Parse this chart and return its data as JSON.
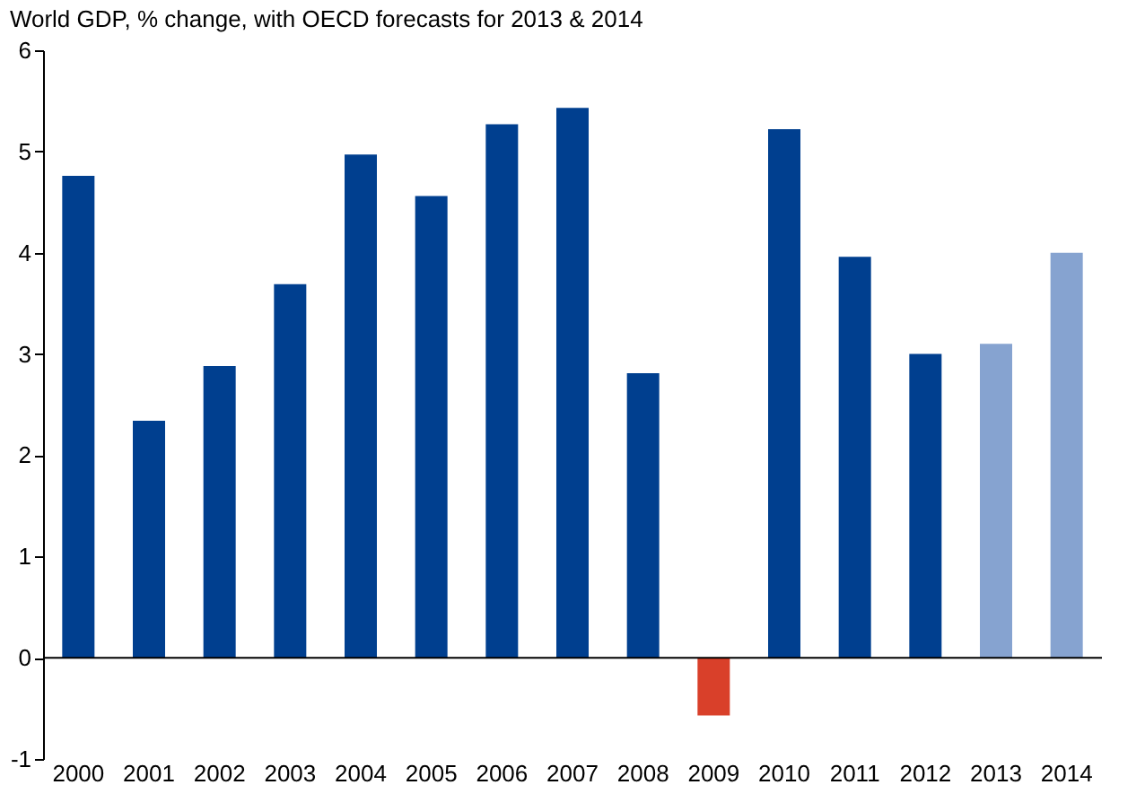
{
  "chart_data": {
    "type": "bar",
    "title": "World GDP, % change, with OECD forecasts for 2013 & 2014",
    "categories": [
      "2000",
      "2001",
      "2002",
      "2003",
      "2004",
      "2005",
      "2006",
      "2007",
      "2008",
      "2009",
      "2010",
      "2011",
      "2012",
      "2013",
      "2014"
    ],
    "values": [
      4.76,
      2.34,
      2.88,
      3.69,
      4.97,
      4.56,
      5.27,
      5.43,
      2.81,
      -0.57,
      5.22,
      3.96,
      3.0,
      3.1,
      4.0
    ],
    "colors": [
      "#003f8f",
      "#003f8f",
      "#003f8f",
      "#003f8f",
      "#003f8f",
      "#003f8f",
      "#003f8f",
      "#003f8f",
      "#003f8f",
      "#d9402a",
      "#003f8f",
      "#003f8f",
      "#003f8f",
      "#86a3d0",
      "#86a3d0"
    ],
    "ylim": [
      -1,
      6
    ],
    "yticks": [
      -1,
      0,
      1,
      2,
      3,
      4,
      5,
      6
    ],
    "grid": false,
    "ref_lines": [
      {
        "axis": "y",
        "value": 0,
        "color": "#000000"
      }
    ]
  }
}
